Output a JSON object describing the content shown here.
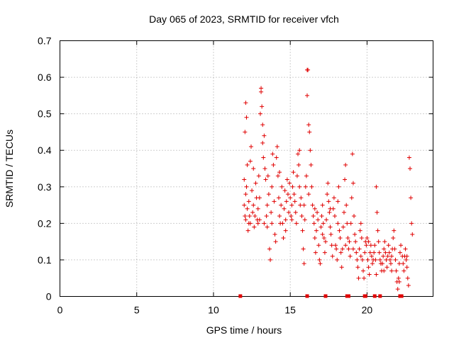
{
  "chart_data": {
    "type": "scatter",
    "title": "Day 065 of 2023, SRMTID for receiver vfch",
    "xlabel": "GPS time / hours",
    "ylabel": "SRMTID / TECUs",
    "xlim": [
      0,
      24.3
    ],
    "ylim": [
      0,
      0.7
    ],
    "x_ticks": [
      0,
      5,
      10,
      15,
      20
    ],
    "x_tick_labels": [
      "0",
      "5",
      "10",
      "15",
      "20"
    ],
    "y_ticks": [
      0,
      0.1,
      0.2,
      0.3,
      0.4,
      0.5,
      0.6,
      0.7
    ],
    "y_tick_labels": [
      "0",
      "0.1",
      "0.2",
      "0.3",
      "0.4",
      "0.5",
      "0.6",
      "0.7"
    ],
    "grid": true,
    "marker": "+",
    "color": "#e00000",
    "series": [
      {
        "name": "SRMTID",
        "points": [
          [
            12.0,
            0.32
          ],
          [
            12.0,
            0.25
          ],
          [
            12.05,
            0.22
          ],
          [
            12.05,
            0.45
          ],
          [
            12.1,
            0.53
          ],
          [
            12.1,
            0.28
          ],
          [
            12.1,
            0.21
          ],
          [
            12.15,
            0.49
          ],
          [
            12.15,
            0.3
          ],
          [
            12.2,
            0.36
          ],
          [
            12.2,
            0.24
          ],
          [
            12.25,
            0.18
          ],
          [
            12.3,
            0.26
          ],
          [
            12.35,
            0.22
          ],
          [
            12.4,
            0.37
          ],
          [
            12.4,
            0.2
          ],
          [
            12.45,
            0.41
          ],
          [
            12.5,
            0.29
          ],
          [
            12.55,
            0.23
          ],
          [
            12.6,
            0.25
          ],
          [
            12.65,
            0.19
          ],
          [
            12.7,
            0.22
          ],
          [
            12.75,
            0.31
          ],
          [
            12.8,
            0.27
          ],
          [
            12.85,
            0.21
          ],
          [
            12.9,
            0.24
          ],
          [
            12.95,
            0.33
          ],
          [
            13.0,
            0.27
          ],
          [
            13.0,
            0.21
          ],
          [
            13.05,
            0.5
          ],
          [
            13.1,
            0.56
          ],
          [
            13.1,
            0.57
          ],
          [
            13.15,
            0.52
          ],
          [
            13.2,
            0.47
          ],
          [
            13.2,
            0.42
          ],
          [
            13.25,
            0.38
          ],
          [
            13.3,
            0.44
          ],
          [
            13.3,
            0.2
          ],
          [
            13.35,
            0.35
          ],
          [
            13.4,
            0.32
          ],
          [
            13.45,
            0.22
          ],
          [
            13.5,
            0.19
          ],
          [
            13.55,
            0.33
          ],
          [
            13.6,
            0.28
          ],
          [
            13.65,
            0.13
          ],
          [
            13.7,
            0.1
          ],
          [
            13.75,
            0.23
          ],
          [
            13.8,
            0.3
          ],
          [
            13.85,
            0.39
          ],
          [
            13.9,
            0.36
          ],
          [
            13.95,
            0.26
          ],
          [
            14.0,
            0.17
          ],
          [
            14.05,
            0.15
          ],
          [
            14.1,
            0.38
          ],
          [
            14.15,
            0.41
          ],
          [
            14.2,
            0.33
          ],
          [
            14.25,
            0.27
          ],
          [
            14.3,
            0.22
          ],
          [
            14.35,
            0.2
          ],
          [
            14.4,
            0.25
          ],
          [
            14.45,
            0.3
          ],
          [
            14.5,
            0.2
          ],
          [
            14.55,
            0.16
          ],
          [
            14.6,
            0.24
          ],
          [
            14.65,
            0.29
          ],
          [
            14.7,
            0.21
          ],
          [
            14.75,
            0.26
          ],
          [
            14.8,
            0.32
          ],
          [
            14.85,
            0.28
          ],
          [
            14.9,
            0.23
          ],
          [
            14.95,
            0.31
          ],
          [
            15.0,
            0.27
          ],
          [
            15.05,
            0.22
          ],
          [
            15.1,
            0.25
          ],
          [
            15.15,
            0.3
          ],
          [
            15.2,
            0.34
          ],
          [
            15.25,
            0.28
          ],
          [
            15.3,
            0.26
          ],
          [
            15.35,
            0.23
          ],
          [
            15.4,
            0.2
          ],
          [
            15.45,
            0.33
          ],
          [
            15.5,
            0.39
          ],
          [
            15.55,
            0.36
          ],
          [
            15.6,
            0.3
          ],
          [
            15.65,
            0.25
          ],
          [
            15.7,
            0.27
          ],
          [
            15.75,
            0.22
          ],
          [
            15.8,
            0.18
          ],
          [
            15.85,
            0.13
          ],
          [
            15.9,
            0.09
          ],
          [
            15.95,
            0.21
          ],
          [
            16.0,
            0.3
          ],
          [
            16.05,
            0.33
          ],
          [
            16.1,
            0.55
          ],
          [
            16.1,
            0.62
          ],
          [
            16.15,
            0.62
          ],
          [
            16.2,
            0.47
          ],
          [
            16.25,
            0.45
          ],
          [
            16.3,
            0.4
          ],
          [
            16.35,
            0.36
          ],
          [
            16.4,
            0.3
          ],
          [
            16.45,
            0.25
          ],
          [
            16.5,
            0.22
          ],
          [
            16.55,
            0.2
          ],
          [
            16.6,
            0.16
          ],
          [
            16.65,
            0.12
          ],
          [
            16.7,
            0.18
          ],
          [
            16.75,
            0.23
          ],
          [
            16.8,
            0.21
          ],
          [
            16.85,
            0.14
          ],
          [
            16.9,
            0.1
          ],
          [
            16.95,
            0.09
          ],
          [
            17.0,
            0.19
          ],
          [
            17.05,
            0.22
          ],
          [
            17.1,
            0.25
          ],
          [
            17.15,
            0.2
          ],
          [
            17.2,
            0.16
          ],
          [
            17.25,
            0.12
          ],
          [
            17.3,
            0.15
          ],
          [
            17.35,
            0.21
          ],
          [
            17.4,
            0.28
          ],
          [
            17.45,
            0.31
          ],
          [
            17.5,
            0.26
          ],
          [
            17.55,
            0.23
          ],
          [
            17.6,
            0.19
          ],
          [
            17.65,
            0.17
          ],
          [
            17.7,
            0.14
          ],
          [
            17.75,
            0.11
          ],
          [
            17.8,
            0.24
          ],
          [
            17.85,
            0.27
          ],
          [
            17.9,
            0.22
          ],
          [
            17.95,
            0.14
          ],
          [
            18.0,
            0.13
          ],
          [
            18.05,
            0.1
          ],
          [
            18.1,
            0.26
          ],
          [
            18.15,
            0.3
          ],
          [
            18.2,
            0.18
          ],
          [
            18.25,
            0.16
          ],
          [
            18.3,
            0.12
          ],
          [
            18.35,
            0.08
          ],
          [
            18.4,
            0.13
          ],
          [
            18.45,
            0.19
          ],
          [
            18.5,
            0.23
          ],
          [
            18.55,
            0.32
          ],
          [
            18.6,
            0.36
          ],
          [
            18.65,
            0.25
          ],
          [
            18.7,
            0.2
          ],
          [
            18.75,
            0.16
          ],
          [
            18.8,
            0.13
          ],
          [
            18.85,
            0.15
          ],
          [
            18.9,
            0.11
          ],
          [
            18.95,
            0.2
          ],
          [
            19.0,
            0.27
          ],
          [
            19.05,
            0.39
          ],
          [
            19.1,
            0.31
          ],
          [
            19.15,
            0.22
          ],
          [
            19.2,
            0.17
          ],
          [
            19.25,
            0.15
          ],
          [
            19.3,
            0.12
          ],
          [
            19.35,
            0.1
          ],
          [
            19.4,
            0.08
          ],
          [
            19.45,
            0.05
          ],
          [
            19.5,
            0.13
          ],
          [
            19.55,
            0.18
          ],
          [
            19.6,
            0.2
          ],
          [
            19.65,
            0.16
          ],
          [
            19.7,
            0.1
          ],
          [
            19.75,
            0.07
          ],
          [
            19.8,
            0.05
          ],
          [
            19.85,
            0.12
          ],
          [
            19.9,
            0.15
          ],
          [
            19.95,
            0.14
          ],
          [
            20.0,
            0.16
          ],
          [
            20.05,
            0.1
          ],
          [
            20.1,
            0.08
          ],
          [
            20.15,
            0.06
          ],
          [
            20.2,
            0.12
          ],
          [
            20.25,
            0.14
          ],
          [
            20.3,
            0.11
          ],
          [
            20.35,
            0.09
          ],
          [
            20.4,
            0.1
          ],
          [
            20.45,
            0.12
          ],
          [
            20.5,
            0.14
          ],
          [
            20.55,
            0.1
          ],
          [
            20.6,
            0.3
          ],
          [
            20.65,
            0.23
          ],
          [
            20.7,
            0.18
          ],
          [
            20.75,
            0.15
          ],
          [
            20.8,
            0.12
          ],
          [
            20.85,
            0.1
          ],
          [
            20.9,
            0.09
          ],
          [
            20.95,
            0.07
          ],
          [
            21.0,
            0.09
          ],
          [
            21.05,
            0.11
          ],
          [
            21.1,
            0.13
          ],
          [
            21.15,
            0.15
          ],
          [
            21.2,
            0.12
          ],
          [
            21.25,
            0.1
          ],
          [
            21.3,
            0.08
          ],
          [
            21.35,
            0.11
          ],
          [
            21.4,
            0.14
          ],
          [
            21.45,
            0.12
          ],
          [
            21.5,
            0.1
          ],
          [
            21.55,
            0.09
          ],
          [
            21.6,
            0.07
          ],
          [
            21.65,
            0.13
          ],
          [
            21.7,
            0.16
          ],
          [
            21.75,
            0.18
          ],
          [
            21.8,
            0.13
          ],
          [
            21.85,
            0.1
          ],
          [
            21.9,
            0.07
          ],
          [
            21.95,
            0.04
          ],
          [
            22.0,
            0.02
          ],
          [
            22.05,
            0.05
          ],
          [
            22.1,
            0.09
          ],
          [
            22.15,
            0.12
          ],
          [
            22.2,
            0.14
          ],
          [
            22.3,
            0.11
          ],
          [
            22.35,
            0.09
          ],
          [
            22.4,
            0.07
          ],
          [
            22.45,
            0.11
          ],
          [
            22.5,
            0.13
          ],
          [
            22.55,
            0.1
          ],
          [
            22.6,
            0.08
          ],
          [
            22.65,
            0.05
          ],
          [
            22.7,
            0.03
          ],
          [
            22.75,
            0.38
          ],
          [
            22.8,
            0.35
          ],
          [
            22.85,
            0.27
          ],
          [
            22.9,
            0.2
          ],
          [
            22.95,
            0.17
          ],
          [
            12.3,
            0.2
          ],
          [
            12.6,
            0.35
          ],
          [
            12.9,
            0.2
          ],
          [
            13.5,
            0.25
          ],
          [
            13.8,
            0.2
          ],
          [
            14.3,
            0.34
          ],
          [
            14.7,
            0.18
          ],
          [
            15.1,
            0.21
          ],
          [
            15.6,
            0.4
          ],
          [
            15.9,
            0.25
          ],
          [
            16.2,
            0.28
          ],
          [
            16.6,
            0.24
          ],
          [
            17.1,
            0.17
          ],
          [
            17.6,
            0.24
          ],
          [
            18.1,
            0.2
          ],
          [
            18.6,
            0.14
          ],
          [
            19.1,
            0.13
          ],
          [
            19.6,
            0.11
          ],
          [
            20.1,
            0.15
          ],
          [
            20.6,
            0.06
          ],
          [
            21.1,
            0.07
          ],
          [
            21.6,
            0.11
          ],
          [
            22.1,
            0.04
          ],
          [
            22.6,
            0.11
          ]
        ]
      }
    ],
    "baseline_markers_x": [
      11.75,
      16.1,
      17.3,
      18.7,
      18.8,
      19.85,
      19.9,
      20.5,
      20.85,
      22.15,
      22.25
    ]
  }
}
